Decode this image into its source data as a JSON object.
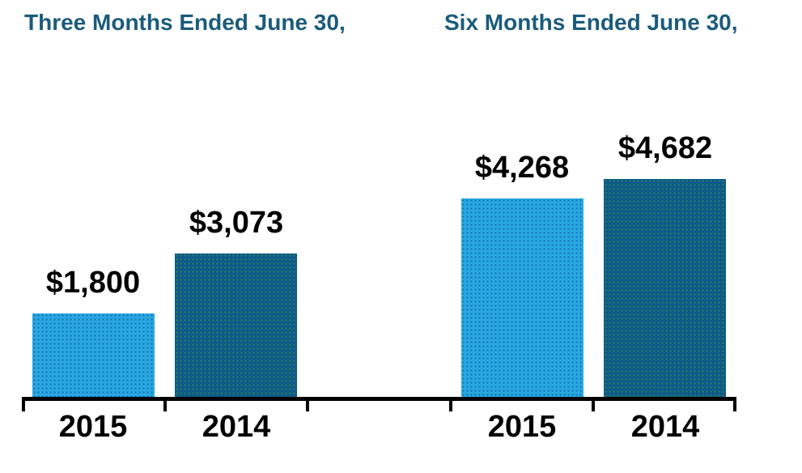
{
  "chart_data": {
    "type": "bar",
    "groups": [
      {
        "title": "Three Months Ended June 30,",
        "bars": [
          {
            "year": "2015",
            "value": 1800,
            "value_label": "$1,800",
            "series": "2015"
          },
          {
            "year": "2014",
            "value": 3073,
            "value_label": "$3,073",
            "series": "2014"
          }
        ]
      },
      {
        "title": "Six Months Ended June 30,",
        "bars": [
          {
            "year": "2015",
            "value": 4268,
            "value_label": "$4,268",
            "series": "2015"
          },
          {
            "year": "2014",
            "value": 4682,
            "value_label": "$4,682",
            "series": "2014"
          }
        ]
      }
    ],
    "colors": {
      "bar_2015": "#29A8E0",
      "bar_2015_dot": "#1478BE",
      "bar_2014": "#0D5A8B",
      "bar_2014_dot": "#2E7D5E",
      "title_text": "#1B5B7C",
      "label_text": "#000000",
      "axis": "#000000"
    },
    "axis": {
      "baseline_only": true,
      "gridlines": false,
      "tick_count": 6,
      "value_axis_visible": false
    },
    "ylim": [
      0,
      5000
    ]
  }
}
